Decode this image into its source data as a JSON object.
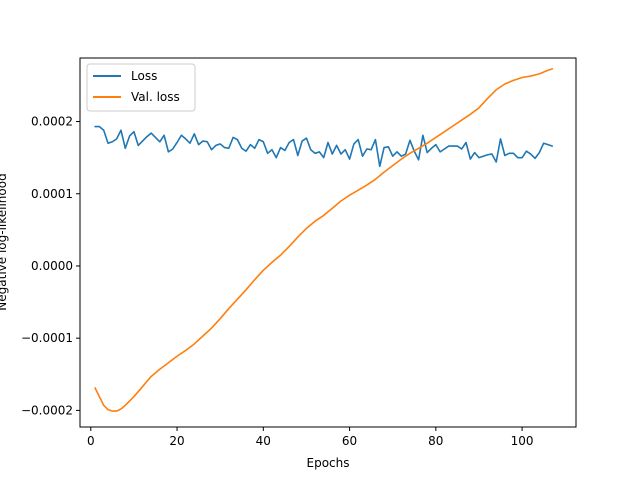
{
  "chart_data": {
    "type": "line",
    "title": "",
    "xlabel": "Epochs",
    "ylabel": "Negative log-likelihood",
    "xlim": [
      -2.5,
      112.5
    ],
    "ylim": [
      -0.000223,
      0.000288
    ],
    "xticks": [
      0,
      20,
      40,
      60,
      80,
      100
    ],
    "xtick_labels": [
      "0",
      "20",
      "40",
      "60",
      "80",
      "100"
    ],
    "yticks": [
      -0.0002,
      -0.0001,
      0.0,
      0.0001,
      0.0002
    ],
    "ytick_labels": [
      "−0.0002",
      "−0.0001",
      "0.0000",
      "0.0001",
      "0.0002"
    ],
    "legend_position": "upper-left",
    "grid": false,
    "series": [
      {
        "name": "Loss",
        "color": "#1f77b4",
        "x": [
          1,
          2,
          3,
          4,
          5,
          6,
          7,
          8,
          9,
          10,
          11,
          12,
          13,
          14,
          15,
          16,
          17,
          18,
          19,
          20,
          21,
          22,
          23,
          24,
          25,
          26,
          27,
          28,
          29,
          30,
          31,
          32,
          33,
          34,
          35,
          36,
          37,
          38,
          39,
          40,
          41,
          42,
          43,
          44,
          45,
          46,
          47,
          48,
          49,
          50,
          51,
          52,
          53,
          54,
          55,
          56,
          57,
          58,
          59,
          60,
          61,
          62,
          63,
          64,
          65,
          66,
          67,
          68,
          69,
          70,
          71,
          72,
          73,
          74,
          75,
          76,
          77,
          78,
          79,
          80,
          81,
          82,
          83,
          84,
          85,
          86,
          87,
          88,
          89,
          90,
          91,
          92,
          93,
          94,
          95,
          96,
          97,
          98,
          99,
          100,
          101,
          102,
          103,
          104,
          105,
          106,
          107
        ],
        "y": [
          0.000193,
          0.000193,
          0.000188,
          0.00017,
          0.000172,
          0.000176,
          0.000188,
          0.000163,
          0.00018,
          0.000186,
          0.000167,
          0.000173,
          0.000179,
          0.000184,
          0.000178,
          0.000172,
          0.000181,
          0.000158,
          0.000162,
          0.000171,
          0.000181,
          0.000176,
          0.00017,
          0.000183,
          0.000168,
          0.000173,
          0.000172,
          0.000161,
          0.000167,
          0.000169,
          0.000164,
          0.000163,
          0.000178,
          0.000175,
          0.000163,
          0.000159,
          0.000168,
          0.000163,
          0.000175,
          0.000172,
          0.000156,
          0.000161,
          0.00015,
          0.000164,
          0.00016,
          0.000171,
          0.000175,
          0.000153,
          0.000173,
          0.000177,
          0.000161,
          0.000156,
          0.000158,
          0.00015,
          0.000171,
          0.000155,
          0.000167,
          0.000155,
          0.000161,
          0.000148,
          0.000169,
          0.000175,
          0.000152,
          0.000162,
          0.000161,
          0.000175,
          0.000138,
          0.000164,
          0.000165,
          0.000152,
          0.000158,
          0.000152,
          0.000155,
          0.000174,
          0.000159,
          0.000147,
          0.000181,
          0.000157,
          0.000163,
          0.000168,
          0.000158,
          0.000162,
          0.000166,
          0.000166,
          0.000166,
          0.000162,
          0.000171,
          0.000148,
          0.000157,
          0.00015,
          0.000152,
          0.000154,
          0.000155,
          0.000144,
          0.000176,
          0.000153,
          0.000156,
          0.000156,
          0.00015,
          0.00015,
          0.000159,
          0.000155,
          0.000149,
          0.000157,
          0.00017,
          0.000168,
          0.000166
        ]
      },
      {
        "name": "Val. loss",
        "color": "#ff7f0e",
        "x": [
          1,
          2,
          3,
          4,
          5,
          6,
          7,
          8,
          10,
          12,
          14,
          16,
          18,
          20,
          22,
          24,
          26,
          28,
          30,
          32,
          34,
          36,
          38,
          40,
          42,
          44,
          46,
          48,
          50,
          52,
          54,
          56,
          58,
          60,
          62,
          64,
          66,
          68,
          70,
          72,
          74,
          76,
          78,
          80,
          82,
          84,
          86,
          88,
          90,
          92,
          94,
          96,
          98,
          100,
          102,
          104,
          106,
          107
        ],
        "y": [
          -0.000169,
          -0.000181,
          -0.000193,
          -0.000199,
          -0.000201,
          -0.000201,
          -0.000198,
          -0.000193,
          -0.000181,
          -0.000167,
          -0.000153,
          -0.000143,
          -0.000134,
          -0.000125,
          -0.000117,
          -0.000108,
          -9.7e-05,
          -8.6e-05,
          -7.3e-05,
          -5.9e-05,
          -4.6e-05,
          -3.3e-05,
          -1.9e-05,
          -6e-06,
          5e-06,
          1.5e-05,
          2.7e-05,
          4e-05,
          5.2e-05,
          6.2e-05,
          7e-05,
          8e-05,
          9e-05,
          9.8e-05,
          0.000105,
          0.000112,
          0.00012,
          0.00013,
          0.000139,
          0.000148,
          0.000156,
          0.000163,
          0.00017,
          0.000178,
          0.000186,
          0.000194,
          0.000202,
          0.00021,
          0.000219,
          0.000232,
          0.000244,
          0.000252,
          0.000257,
          0.000261,
          0.000263,
          0.000266,
          0.000271,
          0.000273
        ]
      }
    ]
  }
}
